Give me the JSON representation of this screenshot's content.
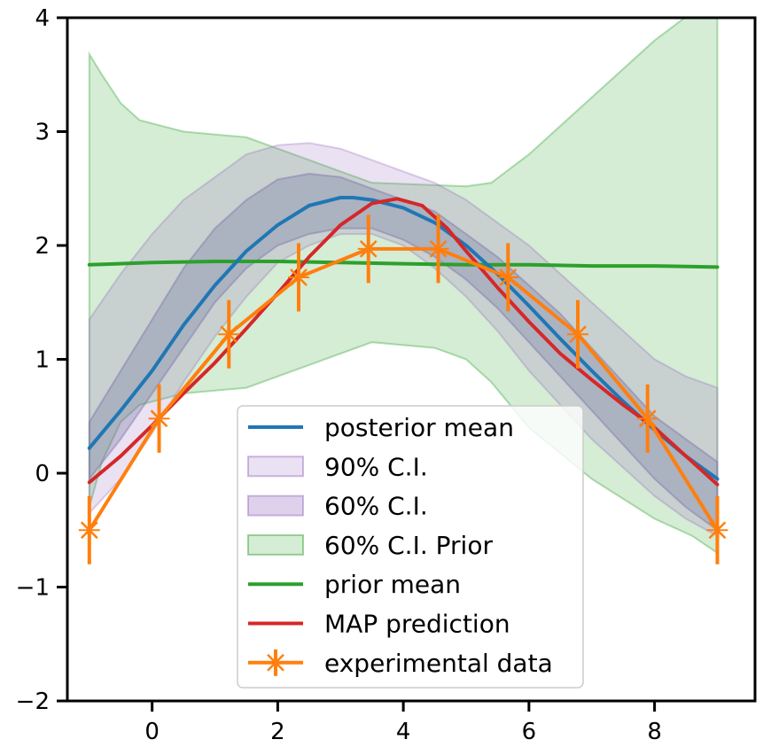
{
  "chart_data": {
    "type": "line",
    "title": "",
    "xlabel": "",
    "ylabel": "",
    "xlim": [
      -1.35,
      9.6
    ],
    "ylim": [
      -2,
      4
    ],
    "x_ticks": [
      0,
      2,
      4,
      6,
      8
    ],
    "y_ticks": [
      -2,
      -1,
      0,
      1,
      2,
      3,
      4
    ],
    "x_tick_labels": [
      "0",
      "2",
      "4",
      "6",
      "8"
    ],
    "y_tick_labels": [
      "−2",
      "−1",
      "0",
      "1",
      "2",
      "3",
      "4"
    ],
    "grid": false,
    "legend_position": "lower-center",
    "colors": {
      "posterior_mean": "#1f77b4",
      "ci90": "#9467bd",
      "ci60": "#7b4fa8",
      "prior_ci": "#2ca02c",
      "prior_mean": "#2ca02c",
      "map": "#d62728",
      "experimental": "#ff7f0e"
    },
    "bands": [
      {
        "name": "60% C.I. Prior",
        "x": [
          -1.0,
          -0.8,
          -0.5,
          -0.2,
          0.5,
          1.5,
          2.5,
          3.5,
          4.5,
          5.0,
          5.4,
          6.0,
          7.0,
          8.0,
          8.6,
          9.0
        ],
        "upper": [
          3.68,
          3.5,
          3.25,
          3.1,
          3.0,
          2.95,
          2.75,
          2.55,
          2.53,
          2.52,
          2.55,
          2.8,
          3.3,
          3.8,
          4.05,
          4.05
        ],
        "lower": [
          -0.3,
          0.1,
          0.45,
          0.6,
          0.7,
          0.75,
          0.95,
          1.15,
          1.1,
          1.0,
          0.8,
          0.4,
          -0.05,
          -0.4,
          -0.55,
          -0.7
        ]
      },
      {
        "name": "90% C.I.",
        "x": [
          -1.0,
          -0.5,
          0.0,
          0.5,
          1.0,
          1.5,
          2.0,
          2.5,
          3.0,
          3.5,
          4.0,
          4.5,
          5.0,
          5.5,
          6.0,
          6.5,
          7.0,
          7.5,
          8.0,
          8.5,
          9.0
        ],
        "upper": [
          1.35,
          1.75,
          2.1,
          2.4,
          2.6,
          2.8,
          2.88,
          2.9,
          2.85,
          2.75,
          2.65,
          2.55,
          2.4,
          2.2,
          2.0,
          1.75,
          1.5,
          1.25,
          1.0,
          0.85,
          0.75
        ],
        "lower": [
          -0.35,
          -0.05,
          0.35,
          0.8,
          1.2,
          1.55,
          1.85,
          2.0,
          2.1,
          2.1,
          2.0,
          1.8,
          1.55,
          1.25,
          0.9,
          0.6,
          0.3,
          0.05,
          -0.2,
          -0.4,
          -0.55
        ]
      },
      {
        "name": "60% C.I.",
        "x": [
          -1.0,
          -0.5,
          0.0,
          0.5,
          1.0,
          1.5,
          2.0,
          2.5,
          3.0,
          3.5,
          4.0,
          4.5,
          5.0,
          5.5,
          6.0,
          6.5,
          7.0,
          7.5,
          8.0,
          8.5,
          9.0
        ],
        "upper": [
          0.45,
          0.9,
          1.35,
          1.8,
          2.15,
          2.4,
          2.58,
          2.63,
          2.6,
          2.5,
          2.4,
          2.3,
          2.1,
          1.9,
          1.65,
          1.4,
          1.1,
          0.8,
          0.5,
          0.3,
          0.1
        ],
        "lower": [
          -0.05,
          0.3,
          0.7,
          1.1,
          1.5,
          1.8,
          2.0,
          2.1,
          2.15,
          2.15,
          2.05,
          1.9,
          1.7,
          1.45,
          1.15,
          0.85,
          0.55,
          0.25,
          -0.05,
          -0.3,
          -0.5
        ]
      }
    ],
    "series": [
      {
        "name": "prior mean",
        "x": [
          -1.0,
          0.0,
          1.0,
          2.0,
          3.0,
          4.0,
          5.0,
          6.0,
          7.0,
          8.0,
          9.0
        ],
        "y": [
          1.83,
          1.85,
          1.86,
          1.86,
          1.85,
          1.84,
          1.83,
          1.83,
          1.82,
          1.82,
          1.81
        ]
      },
      {
        "name": "posterior mean",
        "x": [
          -1.0,
          -0.5,
          0.0,
          0.5,
          1.0,
          1.5,
          2.0,
          2.5,
          3.0,
          3.2,
          3.5,
          4.0,
          4.5,
          5.0,
          5.5,
          6.0,
          6.5,
          7.0,
          7.5,
          8.0,
          8.5,
          9.0
        ],
        "y": [
          0.22,
          0.55,
          0.9,
          1.3,
          1.65,
          1.95,
          2.18,
          2.35,
          2.42,
          2.42,
          2.4,
          2.33,
          2.2,
          2.0,
          1.75,
          1.47,
          1.18,
          0.9,
          0.63,
          0.38,
          0.15,
          -0.05
        ]
      },
      {
        "name": "MAP prediction",
        "x": [
          -1.0,
          -0.5,
          0.0,
          0.5,
          1.0,
          1.5,
          2.0,
          2.5,
          3.0,
          3.5,
          3.9,
          4.3,
          4.7,
          5.0,
          5.5,
          6.0,
          6.5,
          7.0,
          7.5,
          8.0,
          8.5,
          9.0
        ],
        "y": [
          -0.08,
          0.15,
          0.42,
          0.7,
          0.97,
          1.27,
          1.58,
          1.9,
          2.18,
          2.37,
          2.41,
          2.35,
          2.15,
          1.95,
          1.63,
          1.33,
          1.05,
          0.82,
          0.6,
          0.4,
          0.15,
          -0.1
        ]
      }
    ],
    "experimental": {
      "name": "experimental data",
      "x": [
        -1.0,
        0.111,
        1.222,
        2.333,
        3.444,
        4.556,
        5.667,
        6.778,
        7.889,
        9.0
      ],
      "y": [
        -0.5,
        0.48,
        1.22,
        1.72,
        1.97,
        1.97,
        1.72,
        1.22,
        0.48,
        -0.5
      ],
      "err": [
        0.3,
        0.3,
        0.3,
        0.3,
        0.3,
        0.3,
        0.3,
        0.3,
        0.3,
        0.3
      ]
    },
    "legend": [
      {
        "label": "posterior mean",
        "kind": "line",
        "color": "#1f77b4"
      },
      {
        "label": "90% C.I.",
        "kind": "patch",
        "color": "#9467bd",
        "opacity": 0.2
      },
      {
        "label": "60% C.I.",
        "kind": "patch",
        "color": "#9467bd",
        "opacity": 0.3
      },
      {
        "label": "60% C.I. Prior",
        "kind": "patch",
        "color": "#2ca02c",
        "opacity": 0.2
      },
      {
        "label": "prior mean",
        "kind": "line",
        "color": "#2ca02c"
      },
      {
        "label": "MAP prediction",
        "kind": "line",
        "color": "#d62728"
      },
      {
        "label": "experimental data",
        "kind": "errorbar",
        "color": "#ff7f0e"
      }
    ]
  }
}
